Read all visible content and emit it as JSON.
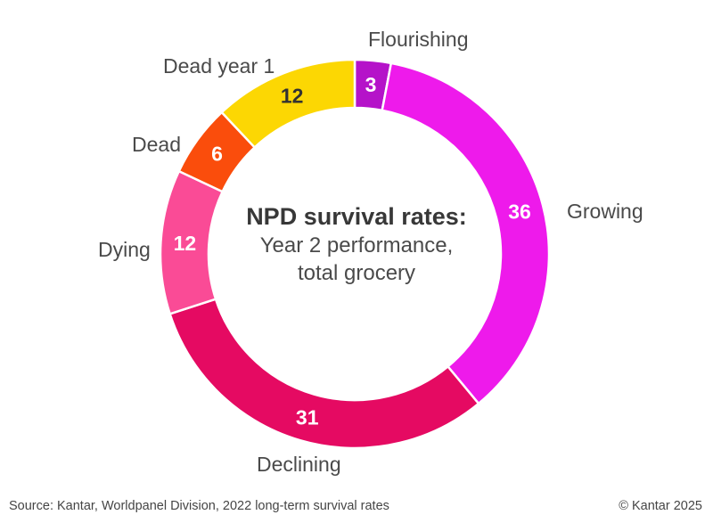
{
  "chart_data": {
    "type": "pie",
    "subtype": "donut",
    "title": "NPD survival rates:",
    "subtitle_line1": "Year 2 performance,",
    "subtitle_line2": "total grocery",
    "total": 100,
    "start_angle": "12 o'clock",
    "direction": "clockwise",
    "legend_position": "outside-labels",
    "segments": [
      {
        "label": "Flourishing",
        "value": 3,
        "color": "#b513c9",
        "value_text_color": "#ffffff"
      },
      {
        "label": "Growing",
        "value": 36,
        "color": "#ee1aeb",
        "value_text_color": "#ffffff"
      },
      {
        "label": "Declining",
        "value": 31,
        "color": "#e50a62",
        "value_text_color": "#ffffff"
      },
      {
        "label": "Dying",
        "value": 12,
        "color": "#fa4b96",
        "value_text_color": "#ffffff"
      },
      {
        "label": "Dead",
        "value": 6,
        "color": "#fa4d0c",
        "value_text_color": "#ffffff"
      },
      {
        "label": "Dead year 1",
        "value": 12,
        "color": "#fcd703",
        "value_text_color": "#323232"
      }
    ]
  },
  "footer": {
    "source": "Source: Kantar, Worldpanel Division, 2022 long-term survival rates",
    "copyright": "© Kantar 2025"
  }
}
